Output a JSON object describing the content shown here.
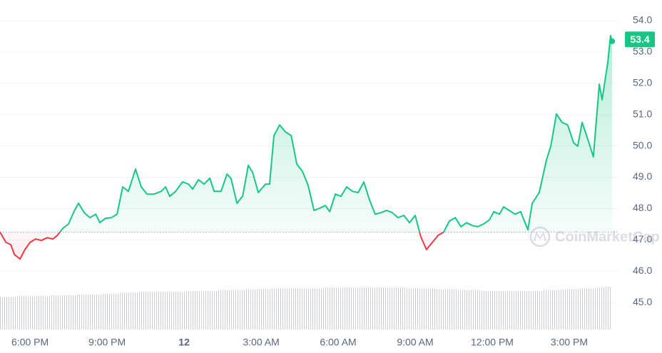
{
  "chart_data": {
    "type": "line",
    "x": [
      16.83,
      17.06,
      17.25,
      17.39,
      17.61,
      17.8,
      18.0,
      18.22,
      18.44,
      18.67,
      18.89,
      19.06,
      19.28,
      19.5,
      19.72,
      19.89,
      20.11,
      20.33,
      20.56,
      20.72,
      20.94,
      21.17,
      21.39,
      21.61,
      21.83,
      22.11,
      22.33,
      22.56,
      22.83,
      23.11,
      23.28,
      23.44,
      23.67,
      23.94,
      24.17,
      24.33,
      24.56,
      24.78,
      25.0,
      25.17,
      25.44,
      25.67,
      25.83,
      26.06,
      26.28,
      26.5,
      26.67,
      26.89,
      27.17,
      27.33,
      27.5,
      27.72,
      27.94,
      28.17,
      28.39,
      28.61,
      28.83,
      29.06,
      29.28,
      29.5,
      29.67,
      29.89,
      30.11,
      30.33,
      30.56,
      30.78,
      31.0,
      31.22,
      31.44,
      31.67,
      31.89,
      32.11,
      32.33,
      32.56,
      32.78,
      33.0,
      33.22,
      33.44,
      33.67,
      33.89,
      34.11,
      34.33,
      34.56,
      34.78,
      35.0,
      35.22,
      35.44,
      35.67,
      35.89,
      36.06,
      36.28,
      36.44,
      36.67,
      36.89,
      37.11,
      37.39,
      37.56,
      37.83,
      38.11,
      38.28,
      38.5,
      38.72,
      38.94,
      39.17,
      39.33,
      39.5,
      39.72,
      39.94,
      40.17,
      40.28,
      40.5,
      40.61,
      40.67
    ],
    "series": [
      {
        "color": "#16c784",
        "below_color": "#ea3943",
        "values": [
          47.25,
          46.92,
          46.85,
          46.53,
          46.39,
          46.69,
          46.92,
          47.03,
          46.98,
          47.07,
          47.03,
          47.14,
          47.37,
          47.51,
          47.92,
          48.17,
          47.87,
          47.71,
          47.82,
          47.55,
          47.69,
          47.71,
          47.82,
          48.69,
          48.55,
          49.26,
          48.69,
          48.46,
          48.46,
          48.55,
          48.69,
          48.39,
          48.55,
          48.85,
          48.78,
          48.62,
          48.92,
          48.78,
          48.97,
          48.55,
          48.55,
          49.1,
          48.96,
          48.17,
          48.39,
          49.38,
          49.15,
          48.51,
          48.78,
          48.78,
          50.33,
          50.67,
          50.45,
          50.33,
          49.42,
          49.19,
          48.74,
          47.94,
          48.01,
          48.1,
          47.9,
          48.46,
          48.39,
          48.69,
          48.55,
          48.51,
          48.85,
          48.28,
          47.82,
          47.87,
          47.94,
          47.87,
          47.71,
          47.78,
          47.55,
          47.78,
          47.1,
          46.69,
          46.92,
          47.14,
          47.25,
          47.6,
          47.71,
          47.42,
          47.55,
          47.46,
          47.42,
          47.51,
          47.64,
          47.9,
          47.82,
          48.05,
          47.94,
          47.82,
          47.9,
          47.32,
          48.17,
          48.51,
          49.54,
          49.99,
          51.02,
          50.75,
          50.67,
          50.1,
          49.99,
          50.75,
          50.22,
          49.65,
          51.97,
          51.47,
          52.66,
          53.52,
          53.34
        ]
      }
    ],
    "volume": {
      "color": "#c9ccd1",
      "values": [
        38,
        38,
        38,
        38,
        39,
        39,
        39,
        39,
        39,
        39,
        40,
        40,
        40,
        40,
        40,
        41,
        41,
        41,
        41,
        41,
        42,
        42,
        42,
        43,
        43,
        43,
        44,
        44,
        44,
        44,
        44,
        44,
        44,
        44,
        45,
        45,
        45,
        45,
        45,
        45,
        46,
        46,
        46,
        46,
        46,
        47,
        47,
        47,
        47,
        47,
        48,
        48,
        48,
        48,
        48,
        48,
        48,
        48,
        48,
        49,
        49,
        49,
        49,
        49,
        49,
        49,
        49,
        49,
        49,
        49,
        49,
        49,
        49,
        49,
        48,
        48,
        48,
        48,
        48,
        47,
        47,
        47,
        47,
        46,
        46,
        46,
        46,
        45,
        45,
        45,
        45,
        45,
        45,
        45,
        45,
        45,
        45,
        45,
        46,
        46,
        46,
        47,
        47,
        47,
        47,
        48,
        48,
        48,
        49,
        49,
        50,
        50,
        50
      ]
    },
    "y3lim": [
      0,
      100
    ],
    "baseline": 47.25,
    "current_price": 53.4,
    "watermark": "CoinMarketCap",
    "xlim": [
      16.83,
      40.89
    ],
    "xticks": [
      {
        "value": 18,
        "label": "6:00 PM"
      },
      {
        "value": 21,
        "label": "9:00 PM"
      },
      {
        "value": 24,
        "label": "12"
      },
      {
        "value": 27,
        "label": "3:00 AM"
      },
      {
        "value": 30,
        "label": "6:00 AM"
      },
      {
        "value": 33,
        "label": "9:00 AM"
      },
      {
        "value": 36,
        "label": "12:00 PM"
      },
      {
        "value": 39,
        "label": "3:00 PM"
      }
    ],
    "ylim": [
      44.14,
      54.43
    ],
    "yticks": [
      {
        "value": 45,
        "label": "45.0"
      },
      {
        "value": 46,
        "label": "46.0"
      },
      {
        "value": 47,
        "label": "47.0"
      },
      {
        "value": 48,
        "label": "48.0"
      },
      {
        "value": 49,
        "label": "49.0"
      },
      {
        "value": 50,
        "label": "50.0"
      },
      {
        "value": 51,
        "label": "51.0"
      },
      {
        "value": 52,
        "label": "52.0"
      },
      {
        "value": 53,
        "label": "53.0"
      },
      {
        "value": 54,
        "label": "54.0"
      }
    ],
    "grid": true
  }
}
